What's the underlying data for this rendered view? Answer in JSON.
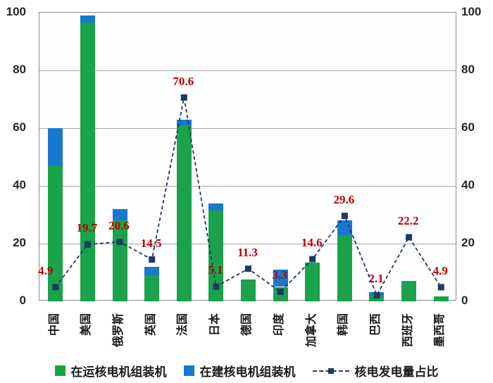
{
  "chart_data": {
    "type": "bar",
    "subtype": "stacked-bars-with-dashed-line-overlay",
    "title": "",
    "categories": [
      "中国",
      "美国",
      "俄罗斯",
      "英国",
      "法国",
      "日本",
      "德国",
      "印度",
      "加拿大",
      "韩国",
      "巴西",
      "西班牙",
      "墨西哥"
    ],
    "series": [
      {
        "name": "在运核电机组装机",
        "type": "bar",
        "stack": "capacity",
        "color": "#1aa34a",
        "values": [
          47,
          96.5,
          28,
          9,
          61,
          31.5,
          7.5,
          5,
          13.5,
          23,
          1.9,
          7,
          1.6
        ]
      },
      {
        "name": "在建核电机组装机",
        "type": "bar",
        "stack": "capacity",
        "color": "#1878cf",
        "values": [
          13,
          2.5,
          4,
          3,
          2,
          2.5,
          0,
          6,
          0,
          5,
          1.3,
          0,
          0
        ]
      },
      {
        "name": "核电发电量占比",
        "type": "line",
        "style": "dashed",
        "marker": "square",
        "color": "#1f3864",
        "values": [
          4.9,
          19.7,
          20.6,
          14.5,
          70.6,
          5.1,
          11.3,
          3.3,
          14.6,
          29.6,
          2.1,
          22.2,
          4.9
        ]
      }
    ],
    "data_labels": {
      "series": "核电发电量占比",
      "color": "#c00000",
      "values": [
        "4.9",
        "19.7",
        "20.6",
        "14.5",
        "70.6",
        "5.1",
        "11.3",
        "3.3",
        "14.6",
        "29.6",
        "2.1",
        "22.2",
        "4.9"
      ]
    },
    "y_axis_left": {
      "min": 0,
      "max": 100,
      "step": 20,
      "ticks": [
        "0",
        "20",
        "40",
        "60",
        "80",
        "100"
      ]
    },
    "y_axis_right": {
      "min": 0,
      "max": 100,
      "step": 20,
      "ticks": [
        "0",
        "20",
        "40",
        "60",
        "80",
        "100"
      ]
    },
    "grid": "horizontal",
    "legend_position": "bottom",
    "xlabel": "",
    "ylabel": ""
  },
  "colors": {
    "operating_bar": "#1aa34a",
    "under_construction_bar": "#1878cf",
    "line": "#1f3864",
    "data_label": "#c00000",
    "gridline": "#a9a9a9",
    "axis_border": "#8a8a8a",
    "axis_text": "#262626"
  }
}
